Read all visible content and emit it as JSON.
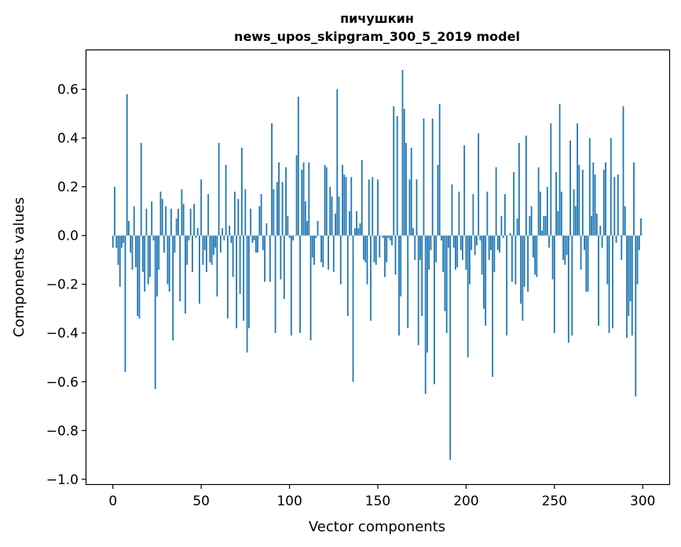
{
  "chart_data": {
    "type": "bar",
    "title": [
      "пичушкин",
      "news_upos_skipgram_300_5_2019 model"
    ],
    "xlabel": "Vector components",
    "ylabel": "Components values",
    "xlim": [
      -15,
      315
    ],
    "ylim": [
      -1.02,
      0.76
    ],
    "xticks": [
      0,
      50,
      100,
      150,
      200,
      250,
      300
    ],
    "yticks": [
      -1.0,
      -0.8,
      -0.6,
      -0.4,
      -0.2,
      0.0,
      0.2,
      0.4,
      0.6
    ],
    "ytick_labels": [
      "−1.0",
      "−0.8",
      "−0.6",
      "−0.4",
      "−0.2",
      "0.0",
      "0.2",
      "0.4",
      "0.6"
    ],
    "grid": false,
    "color": "#1f77b4",
    "values": [
      -0.05,
      0.2,
      -0.05,
      -0.12,
      -0.21,
      -0.05,
      -0.03,
      -0.56,
      0.58,
      0.06,
      -0.07,
      -0.14,
      0.12,
      -0.13,
      -0.33,
      -0.34,
      0.38,
      -0.15,
      -0.23,
      0.11,
      -0.2,
      -0.17,
      0.14,
      -0.02,
      -0.63,
      -0.25,
      -0.14,
      0.18,
      0.15,
      -0.07,
      0.12,
      -0.2,
      -0.23,
      0.11,
      -0.43,
      -0.07,
      0.07,
      0.11,
      -0.27,
      0.19,
      0.13,
      -0.32,
      -0.12,
      -0.02,
      0.11,
      -0.15,
      0.13,
      -0.01,
      0.03,
      -0.28,
      0.23,
      -0.12,
      -0.06,
      -0.15,
      0.17,
      -0.11,
      -0.12,
      -0.08,
      -0.05,
      -0.25,
      0.38,
      -0.07,
      0.03,
      -0.02,
      0.29,
      -0.34,
      0.04,
      -0.03,
      -0.17,
      0.18,
      -0.38,
      0.15,
      -0.24,
      0.36,
      -0.35,
      0.19,
      -0.48,
      -0.38,
      0.11,
      -0.03,
      -0.02,
      -0.07,
      -0.07,
      0.12,
      0.17,
      -0.06,
      -0.19,
      0.05,
      0.0,
      -0.19,
      0.46,
      0.19,
      -0.4,
      0.22,
      0.3,
      -0.18,
      0.22,
      -0.26,
      0.28,
      0.08,
      -0.01,
      -0.41,
      -0.02,
      0.0,
      0.33,
      0.57,
      -0.4,
      0.27,
      0.3,
      0.14,
      0.06,
      0.3,
      -0.43,
      -0.09,
      -0.12,
      -0.01,
      0.06,
      0.0,
      -0.11,
      -0.13,
      0.29,
      0.28,
      -0.14,
      0.2,
      0.16,
      -0.15,
      0.09,
      0.6,
      0.16,
      -0.2,
      0.29,
      0.25,
      0.24,
      -0.33,
      0.1,
      0.24,
      -0.6,
      0.03,
      0.1,
      0.03,
      0.05,
      0.31,
      -0.1,
      -0.11,
      -0.2,
      0.23,
      -0.35,
      0.24,
      -0.11,
      -0.12,
      0.23,
      -0.09,
      0.0,
      -0.01,
      -0.17,
      -0.11,
      -0.01,
      -0.02,
      -0.04,
      0.53,
      -0.16,
      0.49,
      -0.41,
      -0.25,
      0.68,
      0.52,
      0.38,
      -0.38,
      0.23,
      0.36,
      0.03,
      -0.1,
      0.23,
      -0.45,
      -0.1,
      -0.33,
      0.48,
      -0.65,
      -0.48,
      -0.14,
      -0.06,
      0.48,
      -0.61,
      -0.11,
      0.29,
      0.54,
      -0.02,
      -0.15,
      -0.31,
      -0.4,
      -0.05,
      -0.92,
      0.21,
      -0.05,
      -0.14,
      -0.13,
      0.18,
      -0.06,
      -0.1,
      0.37,
      -0.14,
      -0.5,
      -0.2,
      -0.06,
      0.17,
      -0.08,
      -0.04,
      0.42,
      -0.02,
      -0.16,
      -0.3,
      -0.37,
      0.18,
      -0.1,
      -0.06,
      -0.58,
      -0.15,
      0.28,
      -0.06,
      -0.07,
      0.08,
      -0.01,
      0.17,
      -0.41,
      0.0,
      0.01,
      -0.19,
      0.26,
      -0.2,
      0.07,
      0.38,
      -0.28,
      -0.35,
      -0.21,
      0.41,
      -0.23,
      0.08,
      0.12,
      -0.09,
      -0.16,
      -0.17,
      0.28,
      0.18,
      0.02,
      0.08,
      0.08,
      0.2,
      -0.05,
      0.46,
      -0.18,
      -0.4,
      0.26,
      0.1,
      0.54,
      0.18,
      -0.1,
      -0.12,
      -0.08,
      -0.44,
      0.39,
      -0.41,
      0.19,
      0.12,
      0.46,
      0.29,
      -0.14,
      0.27,
      -0.06,
      -0.23,
      -0.23,
      0.4,
      0.08,
      0.3,
      0.25,
      0.09,
      -0.37,
      0.04,
      -0.05,
      0.27,
      0.3,
      -0.2,
      -0.4,
      0.4,
      -0.38,
      0.24,
      -0.03,
      0.25,
      0.0,
      -0.1,
      0.53,
      0.12,
      -0.42,
      -0.33,
      -0.27,
      -0.41,
      0.3,
      -0.66,
      -0.2,
      -0.06,
      0.07
    ]
  }
}
